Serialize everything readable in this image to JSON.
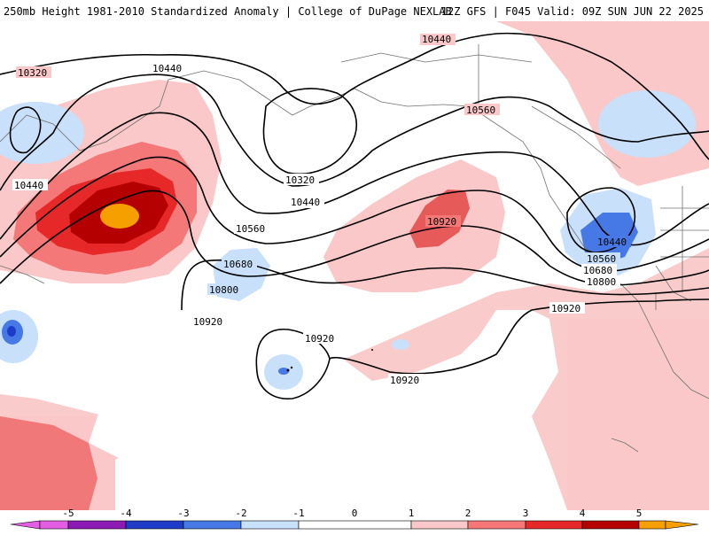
{
  "header": {
    "title": "250mb Height 1981-2010 Standardized Anomaly | College of DuPage NEXLAB",
    "valid": "12Z GFS | F045 Valid: 09Z SUN JUN 22 2025"
  },
  "contour_labels": [
    "10320",
    "10440",
    "10440",
    "10440",
    "10560",
    "10320",
    "10440",
    "10560",
    "10680",
    "10800",
    "10920",
    "10920",
    "10920",
    "10920",
    "10440",
    "10560",
    "10680",
    "10800",
    "10920"
  ],
  "colorbar": {
    "ticks": [
      "-5",
      "-4",
      "-3",
      "-2",
      "-1",
      "0",
      "1",
      "2",
      "3",
      "4",
      "5"
    ],
    "colors": {
      "m5": "#e45ee4",
      "m4": "#8c1ab4",
      "m3": "#1e3cc8",
      "m2": "#4678e6",
      "m1": "#c8e0fa",
      "zero": "#ffffff",
      "p1": "#fac8c8",
      "p2": "#f57878",
      "p3": "#e62828",
      "p4": "#b40000",
      "p5": "#f5a000"
    }
  }
}
